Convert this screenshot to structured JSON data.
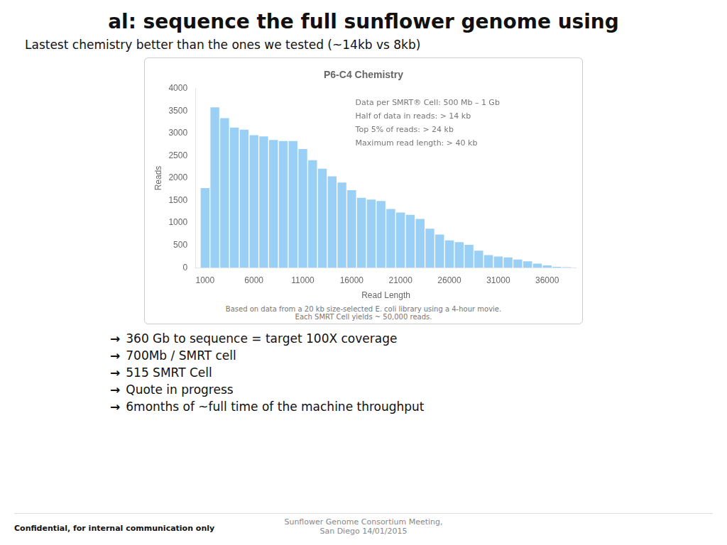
{
  "title": "al: sequence the full sunflower genome using",
  "subtitle": "Lastest chemistry better than the ones we tested (~14kb vs 8kb)",
  "bullet_arrow": "→",
  "bullets": [
    "360 Gb to sequence = target 100X coverage",
    "700Mb / SMRT cell",
    "515 SMRT Cell",
    "Quote in progress",
    "6months of ~full time of the machine throughput"
  ],
  "footer_left": "Confidential, for internal communication only",
  "footer_center": [
    "Sunflower Genome Consortium Meeting,",
    "San Diego 14/01/2015"
  ],
  "chart_data": {
    "type": "bar",
    "title": "P6-C4 Chemistry",
    "x_label": "Read Length",
    "y_label": "Reads",
    "x": [
      1000,
      2000,
      3000,
      4000,
      5000,
      6000,
      7000,
      8000,
      9000,
      10000,
      11000,
      12000,
      13000,
      14000,
      15000,
      16000,
      17000,
      18000,
      19000,
      20000,
      21000,
      22000,
      23000,
      24000,
      25000,
      26000,
      27000,
      28000,
      29000,
      30000,
      31000,
      32000,
      33000,
      34000,
      35000,
      36000,
      37000,
      38000
    ],
    "values": [
      1780,
      3580,
      3340,
      3130,
      3080,
      2960,
      2930,
      2850,
      2830,
      2830,
      2650,
      2400,
      2210,
      2040,
      1900,
      1730,
      1560,
      1520,
      1490,
      1310,
      1230,
      1180,
      1090,
      870,
      740,
      610,
      570,
      510,
      380,
      280,
      250,
      230,
      180,
      140,
      90,
      50,
      20,
      10
    ],
    "xlim": [
      0,
      39000
    ],
    "xticks": [
      1000,
      6000,
      11000,
      16000,
      21000,
      26000,
      31000,
      36000
    ],
    "ylim": [
      0,
      4000
    ],
    "yticks": [
      0,
      500,
      1000,
      1500,
      2000,
      2500,
      3000,
      3500,
      4000
    ],
    "grid": false,
    "legend": false,
    "annotations": [
      "Data per SMRT® Cell: 500 Mb – 1 Gb",
      "Half of data in reads: > 14 kb",
      "Top 5% of reads: > 24 kb",
      "Maximum read length: > 40 kb"
    ],
    "notes": [
      "Based on data from a 20 kb size-selected E. coli library using a 4-hour movie.",
      "Each SMRT Cell yields ~ 50,000 reads."
    ]
  }
}
